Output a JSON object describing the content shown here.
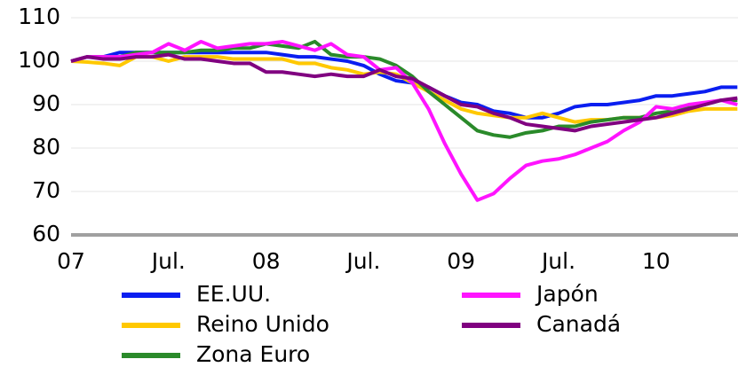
{
  "chart_data": {
    "type": "line",
    "categories": [
      "07",
      null,
      null,
      null,
      null,
      null,
      "Jul.",
      null,
      null,
      null,
      null,
      null,
      "08",
      null,
      null,
      null,
      null,
      null,
      "Jul.",
      null,
      null,
      null,
      null,
      null,
      "09",
      null,
      null,
      null,
      null,
      null,
      "Jul.",
      null,
      null,
      null,
      null,
      null,
      "10",
      null,
      null,
      null,
      null,
      null
    ],
    "series": [
      {
        "name": "EE.UU.",
        "color": "#0a1ef0",
        "values": [
          100,
          101,
          101,
          102,
          102,
          102,
          102,
          102,
          102,
          102,
          102,
          102,
          102,
          101.5,
          101,
          101,
          100.5,
          100,
          99,
          97,
          95.5,
          95,
          94,
          92,
          90.5,
          90,
          88.5,
          88,
          87,
          87,
          88,
          89.5,
          90,
          90,
          90.5,
          91,
          92,
          92,
          92.5,
          93,
          94,
          94
        ]
      },
      {
        "name": "Reino Unido",
        "color": "#ffc800",
        "values": [
          100,
          99.8,
          99.5,
          99,
          101,
          101,
          100,
          101,
          101,
          101,
          100.5,
          100.5,
          100.5,
          100.5,
          99.5,
          99.5,
          98.5,
          98,
          97,
          97.5,
          97,
          95,
          93,
          91,
          89,
          88,
          87.5,
          87,
          87,
          88,
          87,
          86,
          86.5,
          86.5,
          87,
          87,
          87,
          87.5,
          88.5,
          89,
          89,
          89
        ]
      },
      {
        "name": "Zona Euro",
        "color": "#2a8a2a",
        "values": [
          100,
          101,
          101,
          101,
          102,
          102,
          102,
          102,
          102.5,
          102.5,
          103,
          103,
          104,
          103.5,
          103,
          104.5,
          101.5,
          101,
          101,
          100.5,
          99,
          96.5,
          93,
          90,
          87,
          84,
          83,
          82.5,
          83.5,
          84,
          85,
          85,
          86,
          86.5,
          87,
          87,
          88,
          88.5,
          89.5,
          90,
          91,
          91
        ]
      },
      {
        "name": "Japón",
        "color": "#ff14ff",
        "values": [
          100,
          101,
          101,
          101,
          101.5,
          102,
          104,
          102.5,
          104.5,
          103,
          103.5,
          104,
          104,
          104.5,
          103.5,
          102.5,
          104,
          101.5,
          101,
          98,
          98.5,
          95,
          89,
          81,
          74,
          68,
          69.5,
          73,
          76,
          77,
          77.5,
          78.5,
          80,
          81.5,
          84,
          86,
          89.5,
          89,
          90,
          90.5,
          91,
          90
        ]
      },
      {
        "name": "Canadá",
        "color": "#800080",
        "values": [
          100,
          101,
          100.5,
          100.5,
          101,
          101,
          101.5,
          100.5,
          100.5,
          100,
          99.5,
          99.5,
          97.5,
          97.5,
          97,
          96.5,
          97,
          96.5,
          96.5,
          98,
          96.5,
          96,
          94,
          92,
          90,
          89.5,
          88,
          87,
          85.5,
          85,
          84.5,
          84,
          85,
          85.5,
          86,
          86.5,
          87,
          88,
          89,
          90,
          91,
          91.5
        ]
      }
    ],
    "ylim": [
      60,
      110
    ],
    "yticks": [
      60,
      70,
      80,
      90,
      100,
      110
    ],
    "grid": true
  }
}
